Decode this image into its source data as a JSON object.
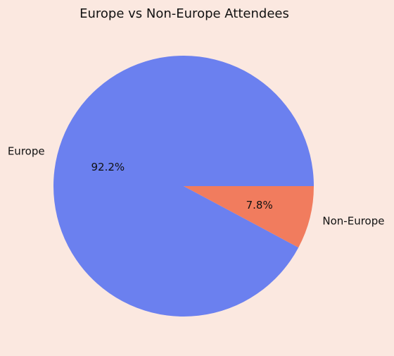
{
  "chart_data": {
    "type": "pie",
    "title": "Europe vs Non-Europe Attendees",
    "categories": [
      "Europe",
      "Non-Europe"
    ],
    "values": [
      92.2,
      7.8
    ],
    "value_labels": [
      "92.2%",
      "7.8%"
    ],
    "colors": [
      "#6b80ef",
      "#f17c5e"
    ],
    "background": "#fbe8e0",
    "legend": "none"
  }
}
